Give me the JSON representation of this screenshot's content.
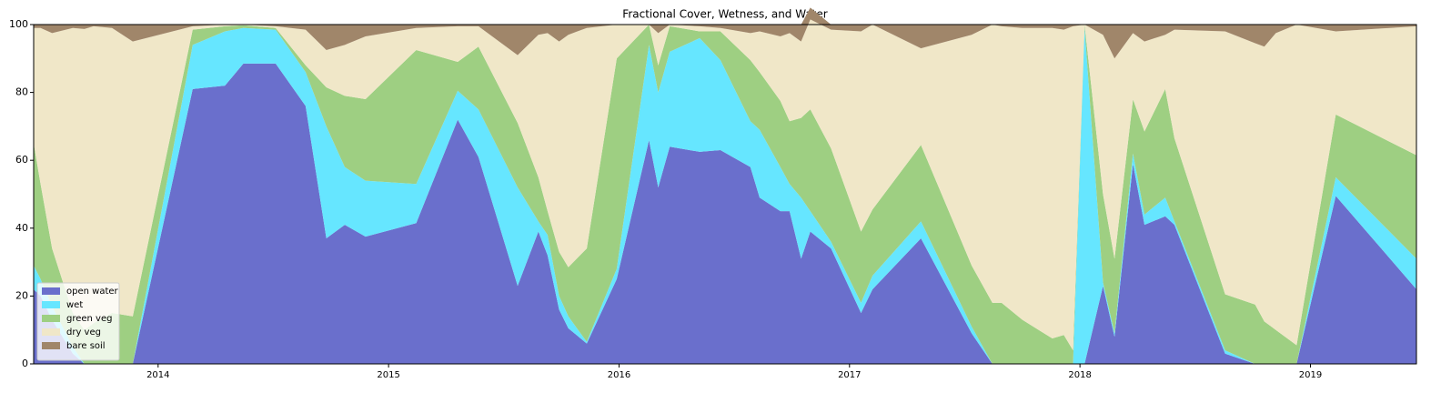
{
  "chart_data": {
    "type": "stackedarea",
    "title": "Fractional Cover, Wetness, and Water",
    "x": [
      2013.46,
      2013.49,
      2013.54,
      2013.63,
      2013.68,
      2013.72,
      2013.8,
      2013.89,
      2014.15,
      2014.29,
      2014.37,
      2014.51,
      2014.64,
      2014.73,
      2014.81,
      2014.9,
      2015.12,
      2015.3,
      2015.39,
      2015.56,
      2015.65,
      2015.69,
      2015.74,
      2015.78,
      2015.86,
      2015.99,
      2016.13,
      2016.17,
      2016.22,
      2016.35,
      2016.44,
      2016.57,
      2016.61,
      2016.7,
      2016.74,
      2016.79,
      2016.83,
      2016.92,
      2017.05,
      2017.1,
      2017.31,
      2017.53,
      2017.62,
      2017.66,
      2017.75,
      2017.88,
      2017.93,
      2017.97,
      2018.02,
      2018.1,
      2018.15,
      2018.23,
      2018.28,
      2018.37,
      2018.41,
      2018.63,
      2018.76,
      2018.8,
      2018.85,
      2018.94,
      2019.11,
      2019.46
    ],
    "series": [
      {
        "name": "open water",
        "color": "#6a6fcc",
        "values": [
          22,
          20,
          13,
          3,
          0,
          0,
          0,
          0,
          81,
          82,
          88.5,
          88.5,
          76,
          37,
          41,
          37.5,
          41.5,
          72,
          61,
          23,
          39,
          32,
          16,
          10.5,
          6,
          25,
          66,
          52,
          64,
          62.5,
          63,
          58,
          49,
          45,
          45,
          31,
          39,
          34,
          15,
          22,
          37,
          9,
          0,
          0,
          0,
          0,
          0,
          0,
          0,
          23,
          8,
          59,
          41,
          43.5,
          41,
          3,
          0,
          0,
          0,
          0,
          49.5,
          22
        ]
      },
      {
        "name": "wet",
        "color": "#66e6ff",
        "values": [
          7,
          5,
          4,
          2,
          0,
          0,
          0,
          0,
          13,
          16,
          10.5,
          10,
          10,
          33,
          17,
          16.5,
          11.5,
          8.5,
          14,
          29,
          3,
          6,
          4,
          3.5,
          0.5,
          3,
          28,
          28,
          28,
          33.5,
          26.5,
          13.5,
          20,
          13,
          8,
          18,
          6,
          2,
          3,
          4,
          5,
          2,
          0,
          0,
          0,
          0,
          0,
          0,
          99,
          1,
          1,
          3,
          3,
          5.5,
          1,
          1,
          0,
          0,
          0,
          0,
          5.5,
          9
        ]
      },
      {
        "name": "green veg",
        "color": "#9ecf82",
        "values": [
          36,
          28,
          17,
          10,
          10,
          12,
          15,
          14,
          4.5,
          1.5,
          0.8,
          0.5,
          2,
          11.5,
          21,
          24,
          39.5,
          8.5,
          18.5,
          19,
          13,
          7,
          13,
          14.5,
          27.5,
          62,
          6,
          8,
          7.5,
          2,
          8.5,
          18,
          17,
          19.5,
          18.5,
          23.5,
          30,
          27.5,
          21,
          19.5,
          22.5,
          18,
          18,
          18,
          13,
          7.5,
          8.5,
          4,
          1,
          26,
          22,
          16,
          24.5,
          32,
          24.5,
          16.5,
          17.5,
          12.5,
          10,
          5.5,
          18.5,
          30.5
        ]
      },
      {
        "name": "dry veg",
        "color": "#f0e7c8",
        "values": [
          34,
          46,
          63.5,
          84,
          88.7,
          87.5,
          84,
          81,
          1,
          0.5,
          0.2,
          0.5,
          10.5,
          11,
          15,
          18.5,
          6.5,
          10.5,
          6,
          20,
          42,
          52.5,
          62,
          68.5,
          65,
          10,
          0,
          9.5,
          0.5,
          1.5,
          1,
          8,
          12,
          19,
          26,
          22.5,
          26.5,
          35,
          59,
          54.5,
          28.5,
          68,
          82,
          81.5,
          86,
          91.5,
          90,
          95.5,
          0,
          47,
          59,
          19.5,
          26.5,
          16,
          32,
          77.5,
          77,
          81,
          87.5,
          94.5,
          24.5,
          38
        ]
      },
      {
        "name": "bare soil",
        "color": "#a0866a",
        "values": [
          1,
          1,
          2.5,
          1,
          1.3,
          0.5,
          1,
          5,
          0.5,
          0,
          0,
          0.5,
          1.5,
          7.5,
          6,
          3.5,
          1,
          0.5,
          0.5,
          9,
          3,
          2.5,
          5,
          3,
          1,
          0,
          0,
          2.5,
          0,
          0.5,
          1,
          2.5,
          2,
          3.5,
          2.5,
          5,
          3.5,
          1.5,
          2,
          0,
          7,
          3,
          0,
          0.5,
          1,
          1,
          1.5,
          0.5,
          0,
          3,
          10,
          2.5,
          5,
          3,
          1.5,
          2,
          5.5,
          6.5,
          2.5,
          0,
          2,
          0.5
        ]
      }
    ],
    "xlim": [
      2013.46,
      2019.46
    ],
    "xticks": [
      2014,
      2015,
      2016,
      2017,
      2018,
      2019
    ],
    "ylim": [
      0,
      100
    ],
    "yticks": [
      0,
      20,
      40,
      60,
      80,
      100
    ],
    "grid": false,
    "legend": "lower left"
  }
}
